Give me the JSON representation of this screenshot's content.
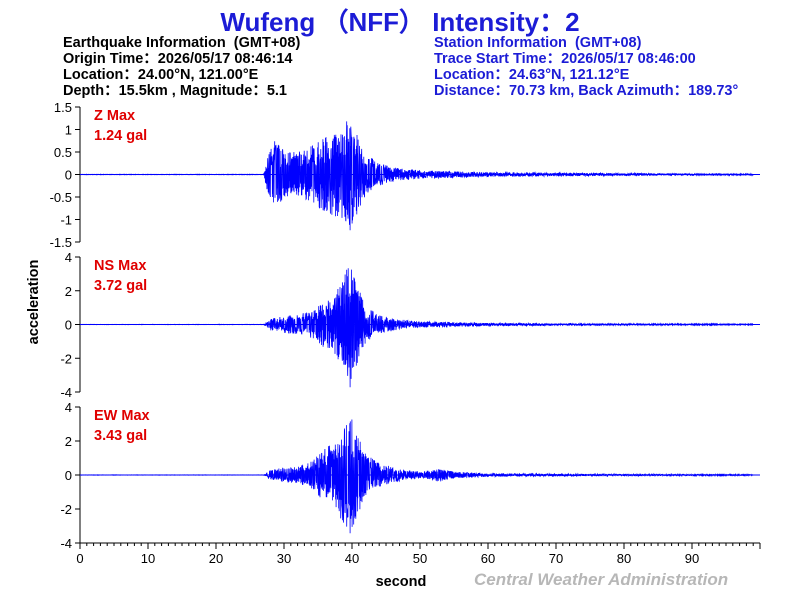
{
  "title": "Wufeng （NFF） Intensity：2",
  "earthquake_info": {
    "heading": "Earthquake Information  (GMT+08)",
    "origin_time": "Origin Time：2026/05/17 08:46:14",
    "location": "Location：24.00°N, 121.00°E",
    "depth_magnitude": "Depth：15.5km , Magnitude：5.1"
  },
  "station_info": {
    "heading": "Station Information  (GMT+08)",
    "trace_start": "Trace Start Time：2026/05/17 08:46:00",
    "location": "Location：24.63°N, 121.12°E",
    "distance": "Distance：70.73 km, Back Azimuth：189.73°"
  },
  "agency": "Central Weather Administration",
  "colors": {
    "title": "#1c1cd6",
    "trace": "#0000ff",
    "max_label": "#e00000",
    "axis": "#000000",
    "agency": "#b7b7b7"
  },
  "chart_data": {
    "type": "line",
    "xlabel": "second",
    "ylabel": "acceleration",
    "xlim": [
      0,
      100
    ],
    "xticks": [
      0,
      10,
      20,
      30,
      40,
      50,
      60,
      70,
      80,
      90
    ],
    "grid": false,
    "panels": [
      {
        "component": "Z",
        "max_label": "Z Max",
        "max_value": "1.24 gal",
        "ylim": [
          -1.5,
          1.5
        ],
        "yticks": [
          -1.5,
          -1,
          -0.5,
          0,
          0.5,
          1,
          1.5
        ],
        "peak": 1.24,
        "envelope": [
          [
            0,
            0.005
          ],
          [
            27,
            0.005
          ],
          [
            27.5,
            0.35
          ],
          [
            28.5,
            0.8
          ],
          [
            30,
            0.55
          ],
          [
            32,
            0.5
          ],
          [
            34,
            0.65
          ],
          [
            36,
            0.85
          ],
          [
            38,
            1.0
          ],
          [
            39.5,
            1.24
          ],
          [
            40.5,
            1.0
          ],
          [
            42,
            0.45
          ],
          [
            44,
            0.25
          ],
          [
            46,
            0.16
          ],
          [
            50,
            0.09
          ],
          [
            60,
            0.05
          ],
          [
            80,
            0.03
          ],
          [
            99,
            0.015
          ]
        ]
      },
      {
        "component": "NS",
        "max_label": "NS Max",
        "max_value": "3.72 gal",
        "ylim": [
          -4,
          4
        ],
        "yticks": [
          -4,
          -2,
          0,
          2,
          4
        ],
        "peak": 3.72,
        "envelope": [
          [
            0,
            0.01
          ],
          [
            27,
            0.01
          ],
          [
            28,
            0.35
          ],
          [
            30,
            0.5
          ],
          [
            32,
            0.6
          ],
          [
            34,
            0.8
          ],
          [
            36,
            1.4
          ],
          [
            37.5,
            1.8
          ],
          [
            39,
            3.2
          ],
          [
            39.8,
            3.72
          ],
          [
            40.5,
            2.6
          ],
          [
            42,
            1.1
          ],
          [
            44,
            0.55
          ],
          [
            47,
            0.3
          ],
          [
            50,
            0.18
          ],
          [
            60,
            0.09
          ],
          [
            80,
            0.05
          ],
          [
            99,
            0.03
          ]
        ]
      },
      {
        "component": "EW",
        "max_label": "EW Max",
        "max_value": "3.43 gal",
        "ylim": [
          -4,
          4
        ],
        "yticks": [
          -4,
          -2,
          0,
          2,
          4
        ],
        "peak": 3.43,
        "envelope": [
          [
            0,
            0.01
          ],
          [
            27,
            0.01
          ],
          [
            28,
            0.3
          ],
          [
            30,
            0.45
          ],
          [
            32,
            0.5
          ],
          [
            34,
            0.8
          ],
          [
            36,
            1.6
          ],
          [
            37.5,
            1.9
          ],
          [
            39,
            3.1
          ],
          [
            39.8,
            3.43
          ],
          [
            40.5,
            2.8
          ],
          [
            42,
            1.3
          ],
          [
            44,
            0.7
          ],
          [
            47,
            0.35
          ],
          [
            50,
            0.2
          ],
          [
            53,
            0.4
          ],
          [
            55,
            0.2
          ],
          [
            60,
            0.1
          ],
          [
            80,
            0.06
          ],
          [
            99,
            0.03
          ]
        ]
      }
    ]
  }
}
